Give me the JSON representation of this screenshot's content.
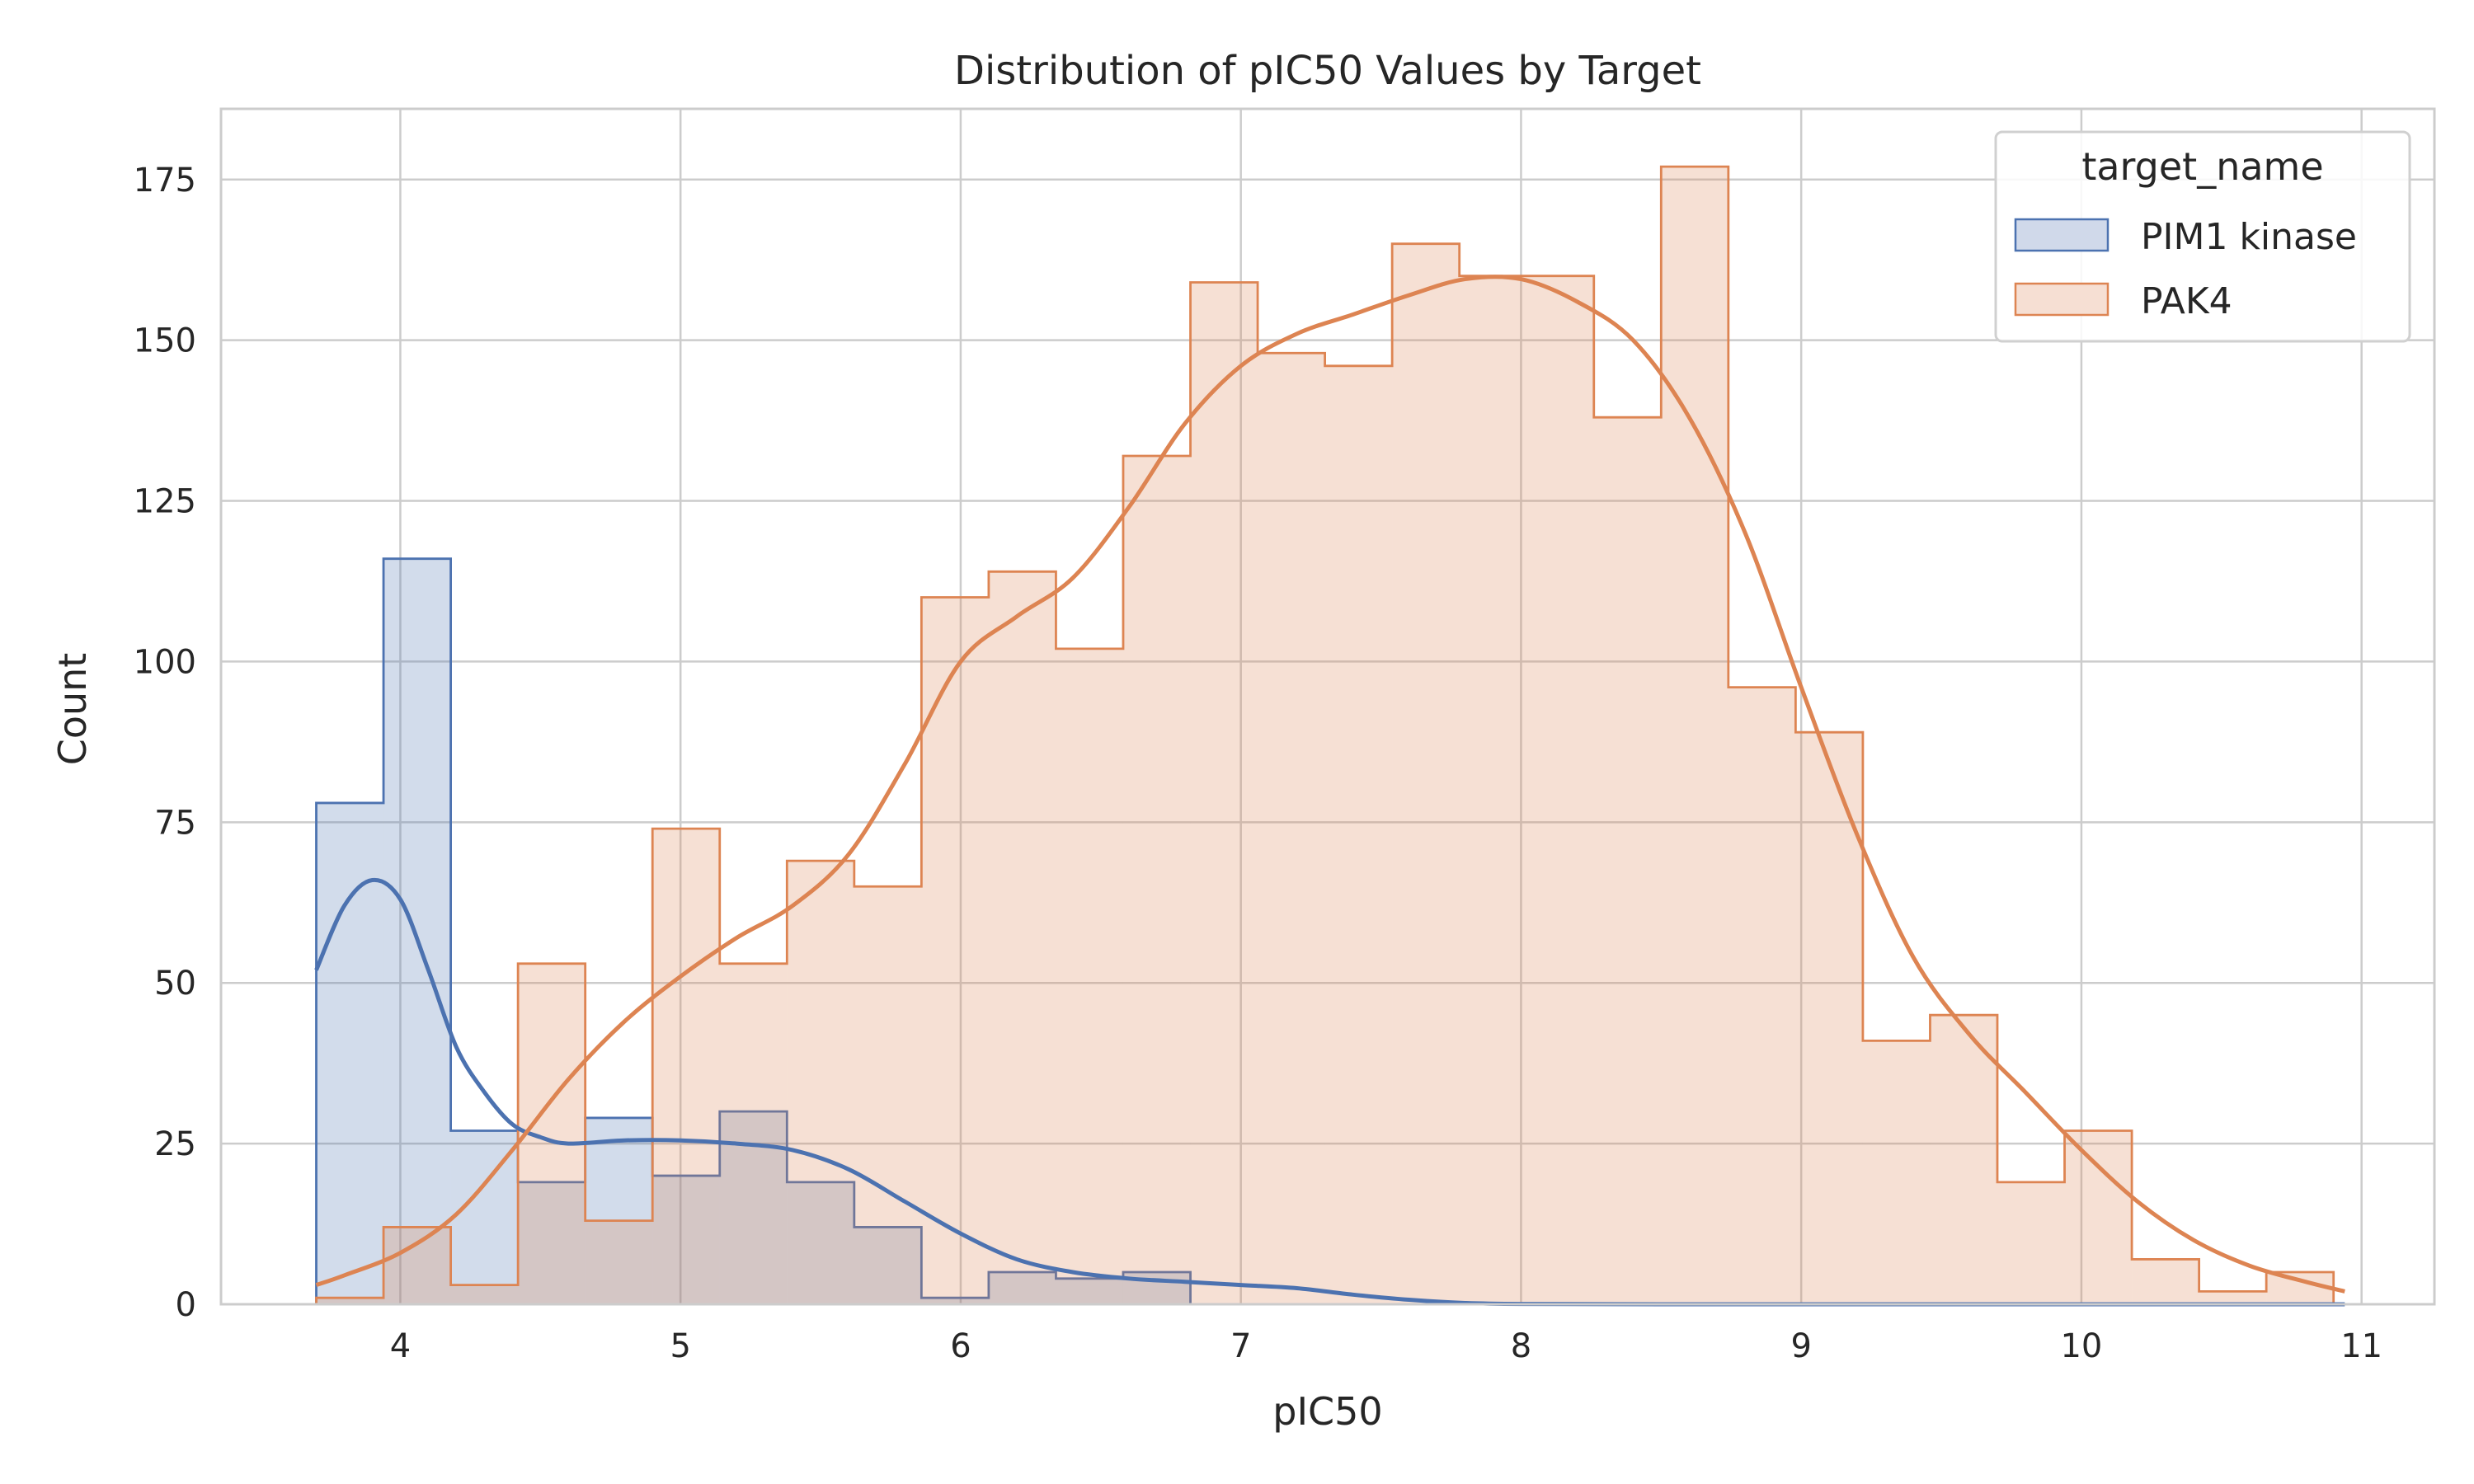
{
  "chart_data": {
    "type": "histogram",
    "title": "Distribution of pIC50 Values by Target",
    "xlabel": "pIC50",
    "ylabel": "Count",
    "xlim": [
      3.36,
      11.26
    ],
    "ylim": [
      0,
      186
    ],
    "xticks": [
      4,
      5,
      6,
      7,
      8,
      9,
      10,
      11
    ],
    "yticks": [
      0,
      25,
      50,
      75,
      100,
      125,
      150,
      175
    ],
    "grid": true,
    "legend": {
      "title": "target_name",
      "placement": "top-right"
    },
    "bin_start": 3.7,
    "bin_width": 0.24,
    "series": [
      {
        "name": "PIM1 kinase",
        "color": "#4c72b0",
        "fill": "#d0d9ea",
        "counts": [
          78,
          116,
          27,
          19,
          29,
          20,
          30,
          19,
          12,
          1,
          5,
          4,
          5,
          0,
          0,
          0,
          0,
          0,
          0,
          0,
          0,
          0,
          0,
          0,
          0,
          0,
          0,
          0,
          0,
          0
        ],
        "kde": [
          [
            3.7,
            52
          ],
          [
            3.8,
            62
          ],
          [
            3.9,
            66
          ],
          [
            4.0,
            63
          ],
          [
            4.1,
            52
          ],
          [
            4.2,
            40
          ],
          [
            4.3,
            33
          ],
          [
            4.4,
            28
          ],
          [
            4.5,
            26
          ],
          [
            4.6,
            25
          ],
          [
            4.8,
            25.5
          ],
          [
            5.0,
            25.5
          ],
          [
            5.2,
            25
          ],
          [
            5.4,
            24
          ],
          [
            5.6,
            21
          ],
          [
            5.8,
            16
          ],
          [
            6.0,
            11
          ],
          [
            6.2,
            7
          ],
          [
            6.4,
            5
          ],
          [
            6.6,
            4
          ],
          [
            6.8,
            3.5
          ],
          [
            7.0,
            3
          ],
          [
            7.2,
            2.5
          ],
          [
            7.4,
            1.5
          ],
          [
            7.6,
            0.7
          ],
          [
            7.8,
            0.2
          ],
          [
            8.0,
            0.05
          ],
          [
            8.5,
            0
          ],
          [
            9.0,
            0
          ],
          [
            9.5,
            0
          ],
          [
            10.0,
            0
          ],
          [
            10.5,
            0
          ],
          [
            10.94,
            0
          ]
        ]
      },
      {
        "name": "PAK4",
        "color": "#dd8452",
        "fill": "#f6dfd3",
        "counts": [
          1,
          12,
          3,
          53,
          13,
          74,
          53,
          69,
          65,
          110,
          114,
          102,
          132,
          159,
          148,
          146,
          165,
          160,
          160,
          138,
          177,
          96,
          89,
          41,
          45,
          19,
          27,
          7,
          2,
          5
        ],
        "kde": [
          [
            3.7,
            3
          ],
          [
            3.8,
            4.5
          ],
          [
            4.0,
            8
          ],
          [
            4.2,
            14
          ],
          [
            4.4,
            24
          ],
          [
            4.6,
            35
          ],
          [
            4.8,
            44
          ],
          [
            5.0,
            51
          ],
          [
            5.2,
            57
          ],
          [
            5.4,
            62
          ],
          [
            5.6,
            70
          ],
          [
            5.8,
            84
          ],
          [
            6.0,
            100
          ],
          [
            6.2,
            107
          ],
          [
            6.4,
            113
          ],
          [
            6.6,
            124
          ],
          [
            6.8,
            137
          ],
          [
            7.0,
            146
          ],
          [
            7.2,
            151
          ],
          [
            7.4,
            154
          ],
          [
            7.6,
            157
          ],
          [
            7.8,
            159.5
          ],
          [
            8.0,
            159.5
          ],
          [
            8.2,
            156
          ],
          [
            8.4,
            150
          ],
          [
            8.6,
            138
          ],
          [
            8.8,
            120
          ],
          [
            9.0,
            96
          ],
          [
            9.2,
            73
          ],
          [
            9.4,
            54
          ],
          [
            9.6,
            42
          ],
          [
            9.8,
            33
          ],
          [
            10.0,
            24
          ],
          [
            10.2,
            16
          ],
          [
            10.4,
            10
          ],
          [
            10.6,
            6
          ],
          [
            10.8,
            3.5
          ],
          [
            10.94,
            2
          ]
        ]
      }
    ]
  }
}
